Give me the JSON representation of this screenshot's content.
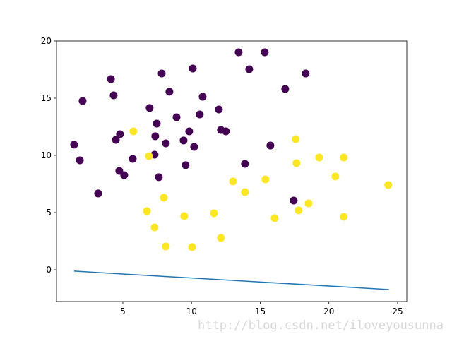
{
  "chart_data": {
    "type": "scatter",
    "xlim": [
      0.17,
      25.67
    ],
    "ylim": [
      -2.78,
      20
    ],
    "xticks": [
      5,
      10,
      15,
      20,
      25
    ],
    "yticks": [
      0,
      5,
      10,
      15,
      20
    ],
    "watermark": "http://blog.csdn.net/iloveyousunna",
    "series": [
      {
        "type": "scatter",
        "color": "#440154",
        "x": [
          1.45,
          1.87,
          2.07,
          3.2,
          4.13,
          4.33,
          4.49,
          4.79,
          4.74,
          5.1,
          5.72,
          6.95,
          7.83,
          8.39,
          7.47,
          7.36,
          7.31,
          7.62,
          8.13,
          8.91,
          9.42,
          9.57,
          9.83,
          10.09,
          10.19,
          10.6,
          10.81,
          11.99,
          12.14,
          12.5,
          13.43,
          13.89,
          14.2,
          15.33,
          15.74,
          16.82,
          17.44,
          18.31
        ],
        "values": [
          10.93,
          9.57,
          14.75,
          6.67,
          16.67,
          15.25,
          11.36,
          11.85,
          8.64,
          8.27,
          9.69,
          14.14,
          17.16,
          15.56,
          12.78,
          11.67,
          10.06,
          8.09,
          11.05,
          13.33,
          11.3,
          9.14,
          12.1,
          17.59,
          10.74,
          13.58,
          15.12,
          14.01,
          12.22,
          12.1,
          19.01,
          9.26,
          17.53,
          19.01,
          10.86,
          15.8,
          6.05,
          17.16
        ]
      },
      {
        "type": "scatter",
        "color": "#fde725",
        "x": [
          5.77,
          6.9,
          6.75,
          7.98,
          7.31,
          8.13,
          9.47,
          10.04,
          11.63,
          12.14,
          13.02,
          13.89,
          15.38,
          16.05,
          17.59,
          17.64,
          17.8,
          18.52,
          19.29,
          20.47,
          21.08,
          21.08,
          24.32
        ],
        "values": [
          12.1,
          9.94,
          5.12,
          6.3,
          3.7,
          2.04,
          4.69,
          1.98,
          4.94,
          2.78,
          7.72,
          6.79,
          7.9,
          4.51,
          11.42,
          9.32,
          5.19,
          5.8,
          9.81,
          8.15,
          9.81,
          4.63,
          7.41
        ]
      },
      {
        "type": "line",
        "color": "#1f77b4",
        "x": [
          1.45,
          24.37
        ],
        "values": [
          -0.12,
          -1.73
        ]
      }
    ]
  }
}
